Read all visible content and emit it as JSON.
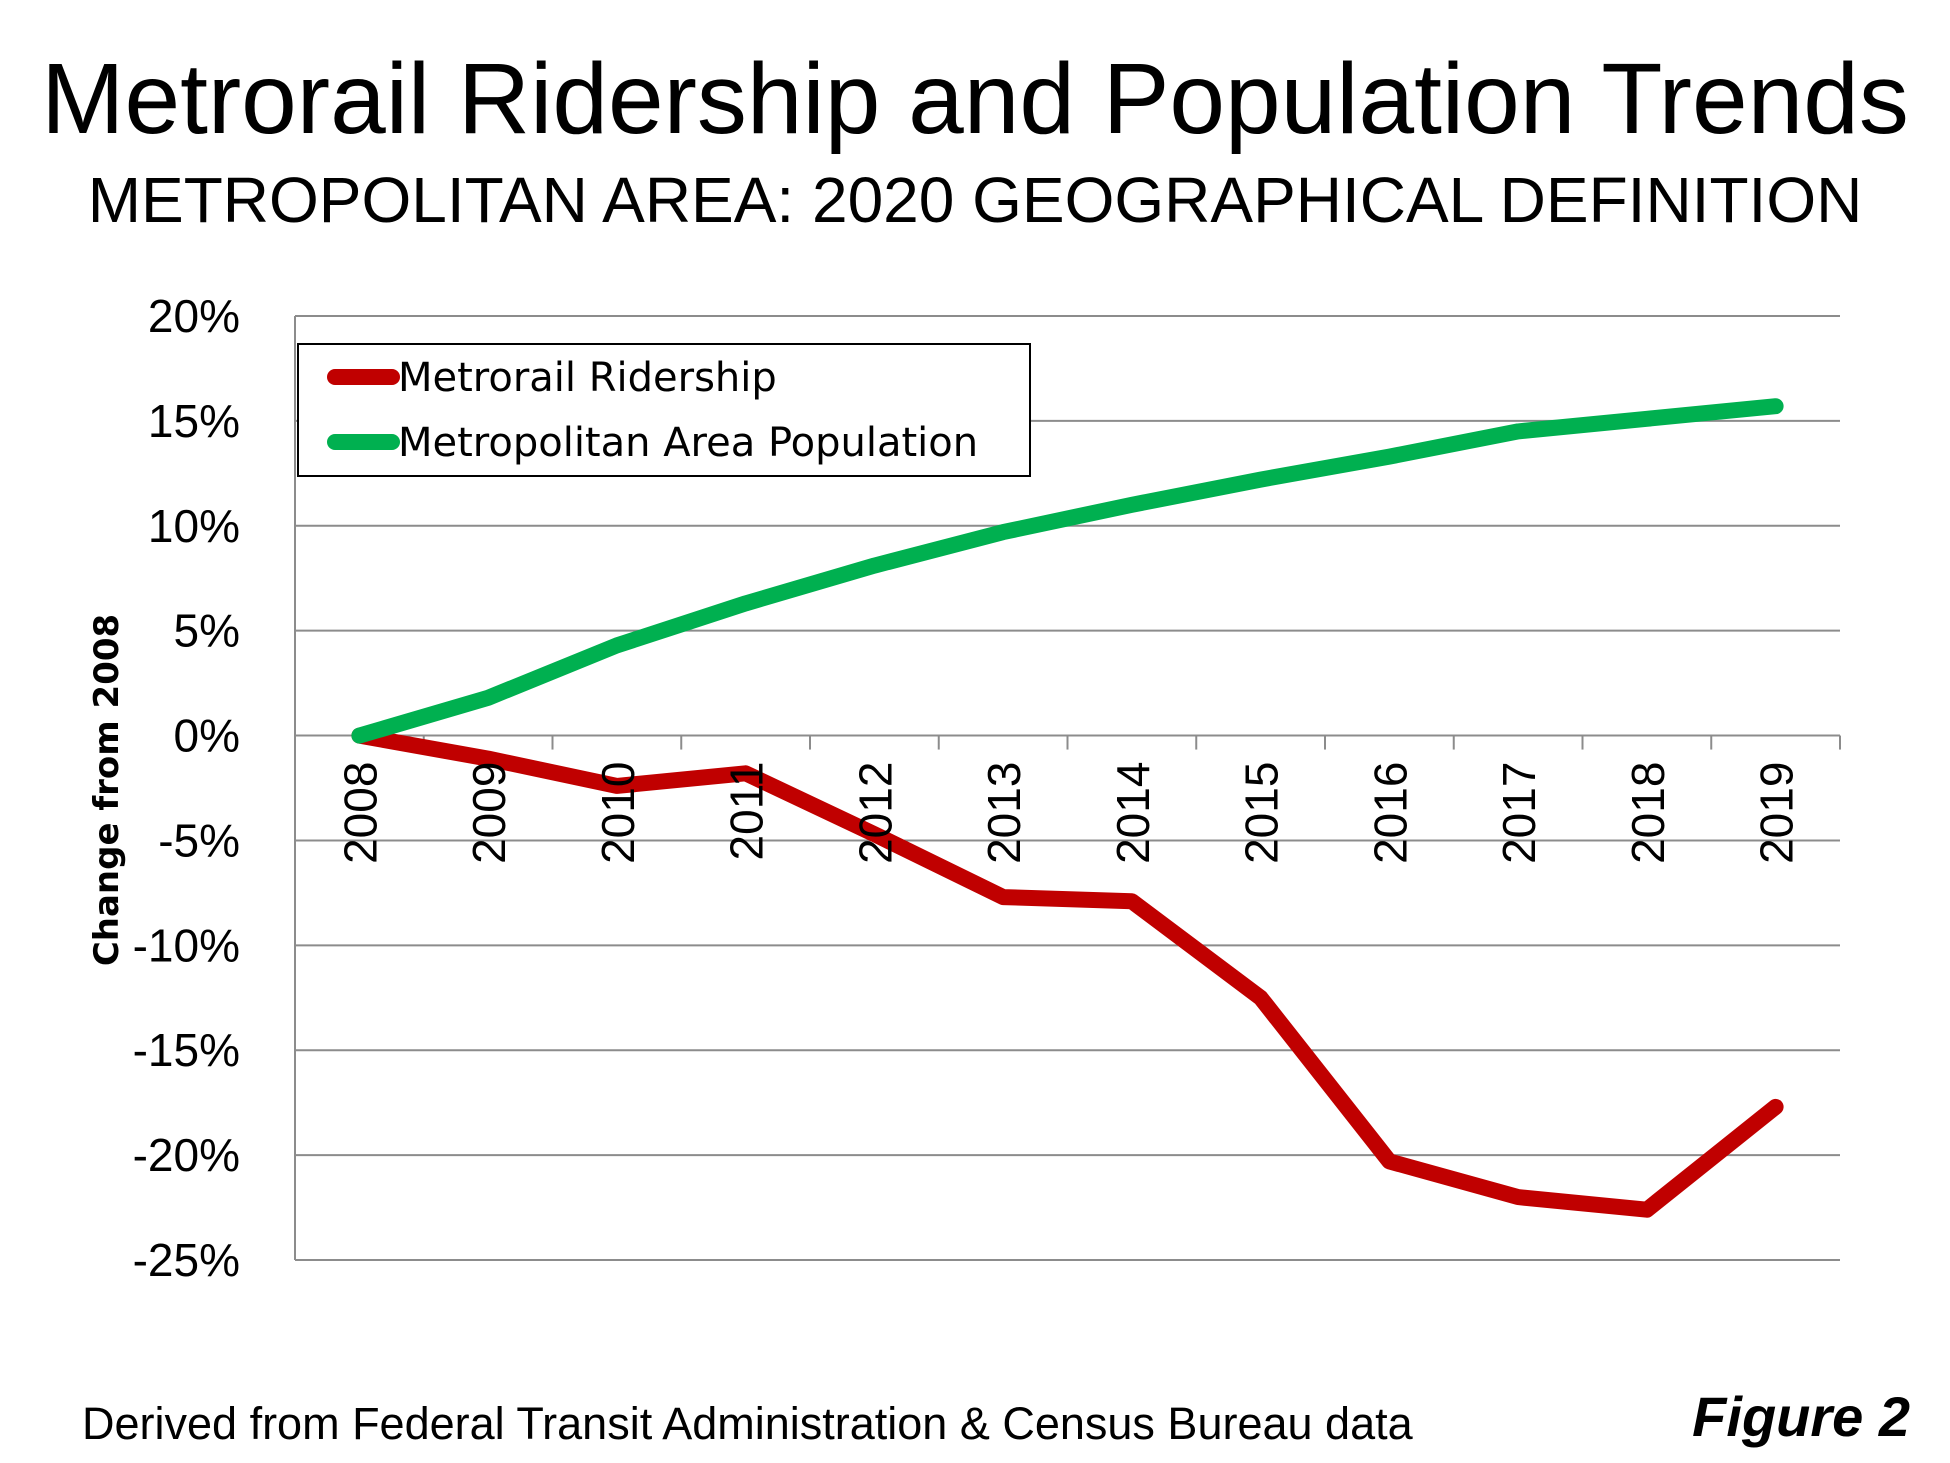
{
  "title": "Metrorail Ridership and Population Trends",
  "subtitle": "METROPOLITAN AREA: 2020 GEOGRAPHICAL DEFINITION",
  "source": "Derived from Federal Transit Administration & Census Bureau data",
  "figure_label": "Figure 2",
  "chart_data": {
    "type": "line",
    "title": "Metrorail Ridership and Population Trends",
    "subtitle": "METROPOLITAN AREA: 2020 GEOGRAPHICAL DEFINITION",
    "xlabel": "",
    "ylabel": "Change from 2008",
    "categories": [
      "2008",
      "2009",
      "2010",
      "2011",
      "2012",
      "2013",
      "2014",
      "2015",
      "2016",
      "2017",
      "2018",
      "2019"
    ],
    "ylim": [
      -25,
      20
    ],
    "yticks": [
      20,
      15,
      10,
      5,
      0,
      -5,
      -10,
      -15,
      -20,
      -25
    ],
    "ytick_labels": [
      "20%",
      "15%",
      "10%",
      "5%",
      "0%",
      "-5%",
      "-10%",
      "-15%",
      "-20%",
      "-25%"
    ],
    "grid": true,
    "legend_position": "top-left",
    "series": [
      {
        "name": "Metrorail Ridership",
        "color": "#c00000",
        "values": [
          0,
          -1.1,
          -2.4,
          -1.8,
          -4.7,
          -7.7,
          -7.9,
          -12.5,
          -20.3,
          -22.0,
          -22.6,
          -17.7
        ]
      },
      {
        "name": "Metropolitan Area Population",
        "color": "#00b050",
        "values": [
          0,
          1.8,
          4.3,
          6.3,
          8.1,
          9.7,
          11.0,
          12.2,
          13.3,
          14.5,
          15.1,
          15.7
        ]
      }
    ]
  }
}
